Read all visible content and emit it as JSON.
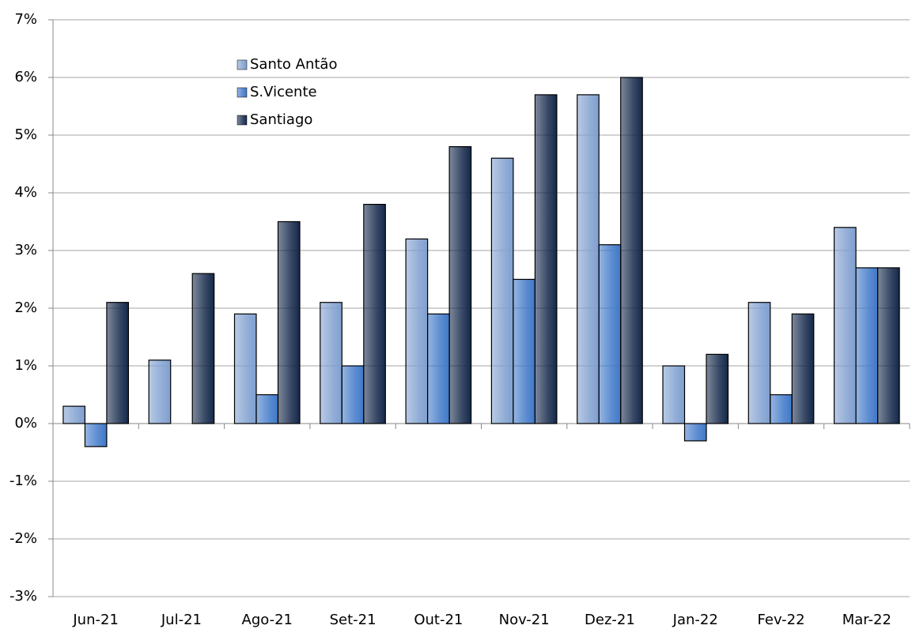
{
  "chart_data": {
    "type": "bar",
    "categories": [
      "Jun-21",
      "Jul-21",
      "Ago-21",
      "Set-21",
      "Out-21",
      "Nov-21",
      "Dez-21",
      "Jan-22",
      "Fev-22",
      "Mar-22"
    ],
    "series": [
      {
        "name": "Santo Antão",
        "color": "#7f9fcf",
        "values": [
          0.3,
          1.1,
          1.9,
          2.1,
          3.2,
          4.6,
          5.7,
          1.0,
          2.1,
          3.4
        ]
      },
      {
        "name": "S.Vicente",
        "color": "#3f78c8",
        "values": [
          -0.4,
          0,
          0.5,
          1.0,
          1.9,
          2.5,
          3.1,
          -0.3,
          0.5,
          2.7
        ]
      },
      {
        "name": "Santiago",
        "color": "#14284a",
        "values": [
          2.1,
          2.6,
          3.5,
          3.8,
          4.8,
          5.7,
          6.0,
          1.2,
          1.9,
          2.7
        ]
      }
    ],
    "ylim": [
      -3,
      7
    ],
    "yticks": [
      {
        "value": -3,
        "label": "-3%"
      },
      {
        "value": -2,
        "label": "-2%"
      },
      {
        "value": -1,
        "label": "-1%"
      },
      {
        "value": 0,
        "label": "0%"
      },
      {
        "value": 1,
        "label": "1%"
      },
      {
        "value": 2,
        "label": "2%"
      },
      {
        "value": 3,
        "label": "3%"
      },
      {
        "value": 4,
        "label": "4%"
      },
      {
        "value": 5,
        "label": "5%"
      },
      {
        "value": 6,
        "label": "6%"
      },
      {
        "value": 7,
        "label": "7%"
      }
    ],
    "grid": true,
    "legend": "upper left"
  }
}
